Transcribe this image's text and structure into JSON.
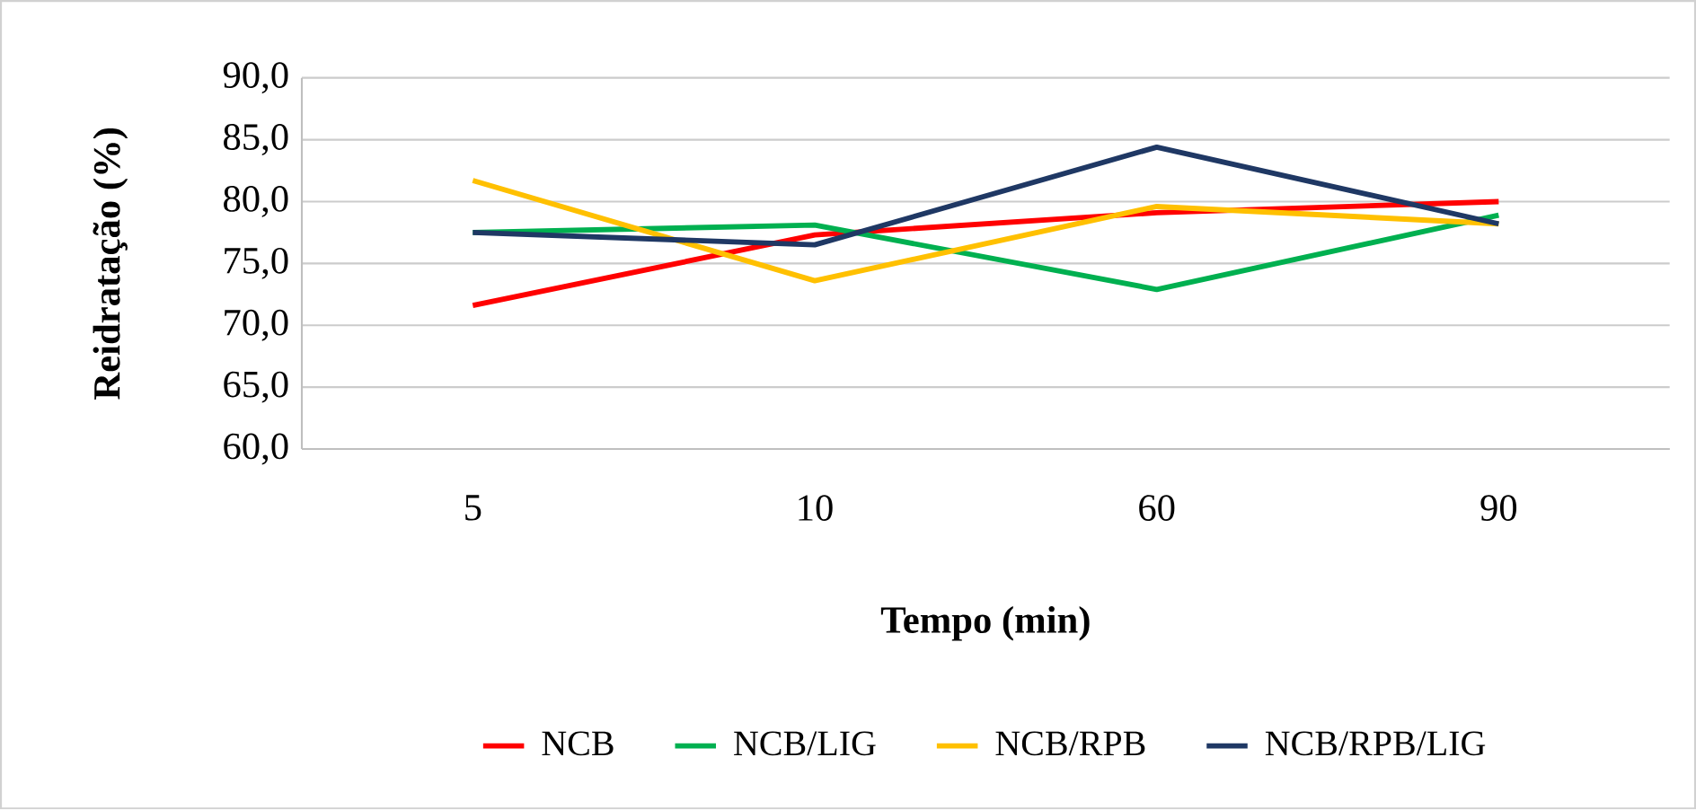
{
  "chart_data": {
    "type": "line",
    "xlabel": "Tempo (min)",
    "ylabel": "Reidratação (%)",
    "categories": [
      "5",
      "10",
      "60",
      "90"
    ],
    "series": [
      {
        "name": "NCB",
        "color": "#ff0000",
        "values": [
          71.6,
          77.3,
          79.1,
          80.0
        ]
      },
      {
        "name": "NCB/LIG",
        "color": "#00b050",
        "values": [
          77.5,
          78.1,
          72.9,
          78.9
        ]
      },
      {
        "name": "NCB/RPB",
        "color": "#ffc000",
        "values": [
          81.7,
          73.6,
          79.6,
          78.2
        ]
      },
      {
        "name": "NCB/RPB/LIG",
        "color": "#1f3864",
        "values": [
          77.5,
          76.5,
          84.4,
          78.2
        ]
      }
    ],
    "ylim": [
      60,
      90
    ],
    "yticks": [
      {
        "value": 60,
        "label": "60,0"
      },
      {
        "value": 65,
        "label": "65,0"
      },
      {
        "value": 70,
        "label": "70,0"
      },
      {
        "value": 75,
        "label": "75,0"
      },
      {
        "value": 80,
        "label": "80,0"
      },
      {
        "value": 85,
        "label": "85,0"
      },
      {
        "value": 90,
        "label": "90,0"
      }
    ],
    "grid": "y",
    "legend": "bottom",
    "marker": "none",
    "line_style": "solid"
  }
}
